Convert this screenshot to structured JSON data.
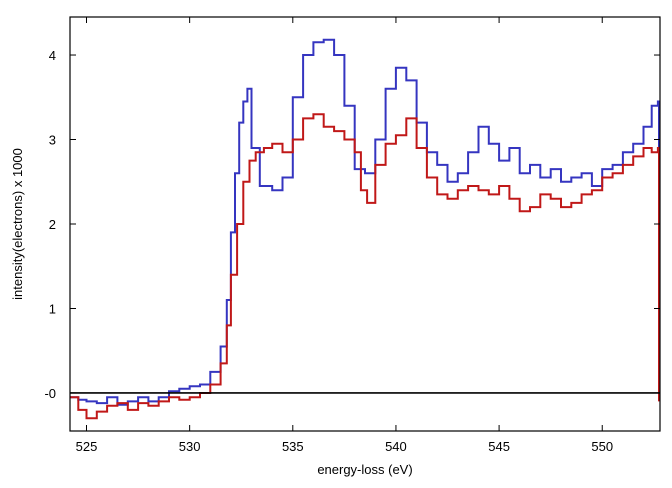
{
  "chart_data": {
    "type": "line",
    "title": "",
    "xlabel": "energy-loss (eV)",
    "ylabel": "intensity(electrons) x 1000",
    "xlim": [
      524.2,
      552.8
    ],
    "ylim": [
      -0.45,
      4.45
    ],
    "x_ticks": [
      525,
      530,
      535,
      540,
      545,
      550
    ],
    "x_tick_labels": [
      "525",
      "530",
      "535",
      "540",
      "545",
      "550"
    ],
    "y_ticks": [
      0,
      1,
      2,
      3,
      4
    ],
    "y_tick_labels": [
      "-0",
      "1",
      "2",
      "3",
      "4"
    ],
    "grid": false,
    "legend": "none",
    "baseline": 0,
    "series": [
      {
        "color": "#3535c0",
        "style": "step",
        "points": [
          [
            524.2,
            -0.05
          ],
          [
            524.6,
            -0.08
          ],
          [
            525.0,
            -0.1
          ],
          [
            525.5,
            -0.12
          ],
          [
            526.0,
            -0.05
          ],
          [
            526.5,
            -0.14
          ],
          [
            527.0,
            -0.1
          ],
          [
            527.5,
            -0.05
          ],
          [
            528.0,
            -0.1
          ],
          [
            528.5,
            -0.05
          ],
          [
            529.0,
            0.02
          ],
          [
            529.5,
            0.05
          ],
          [
            530.0,
            0.08
          ],
          [
            530.5,
            0.1
          ],
          [
            531.0,
            0.25
          ],
          [
            531.5,
            0.55
          ],
          [
            531.8,
            1.1
          ],
          [
            532.0,
            1.9
          ],
          [
            532.2,
            2.6
          ],
          [
            532.4,
            3.2
          ],
          [
            532.6,
            3.45
          ],
          [
            532.8,
            3.6
          ],
          [
            533.0,
            2.9
          ],
          [
            533.4,
            2.45
          ],
          [
            534.0,
            2.4
          ],
          [
            534.5,
            2.55
          ],
          [
            535.0,
            3.5
          ],
          [
            535.5,
            4.0
          ],
          [
            536.0,
            4.15
          ],
          [
            536.5,
            4.18
          ],
          [
            537.0,
            4.0
          ],
          [
            537.5,
            3.4
          ],
          [
            538.0,
            2.65
          ],
          [
            538.5,
            2.6
          ],
          [
            539.0,
            3.0
          ],
          [
            539.5,
            3.6
          ],
          [
            540.0,
            3.85
          ],
          [
            540.5,
            3.7
          ],
          [
            541.0,
            3.2
          ],
          [
            541.5,
            2.85
          ],
          [
            542.0,
            2.7
          ],
          [
            542.5,
            2.5
          ],
          [
            543.0,
            2.6
          ],
          [
            543.5,
            2.85
          ],
          [
            544.0,
            3.15
          ],
          [
            544.5,
            2.95
          ],
          [
            545.0,
            2.75
          ],
          [
            545.5,
            2.9
          ],
          [
            546.0,
            2.6
          ],
          [
            546.5,
            2.7
          ],
          [
            547.0,
            2.55
          ],
          [
            547.5,
            2.65
          ],
          [
            548.0,
            2.5
          ],
          [
            548.5,
            2.55
          ],
          [
            549.0,
            2.6
          ],
          [
            549.5,
            2.45
          ],
          [
            550.0,
            2.65
          ],
          [
            550.5,
            2.7
          ],
          [
            551.0,
            2.85
          ],
          [
            551.5,
            2.95
          ],
          [
            552.0,
            3.15
          ],
          [
            552.4,
            3.4
          ],
          [
            552.7,
            3.45
          ],
          [
            552.75,
            -0.05
          ]
        ]
      },
      {
        "color": "#c01818",
        "style": "step",
        "points": [
          [
            524.2,
            -0.05
          ],
          [
            524.6,
            -0.2
          ],
          [
            525.0,
            -0.3
          ],
          [
            525.5,
            -0.22
          ],
          [
            526.0,
            -0.15
          ],
          [
            526.5,
            -0.12
          ],
          [
            527.0,
            -0.2
          ],
          [
            527.5,
            -0.12
          ],
          [
            528.0,
            -0.15
          ],
          [
            528.5,
            -0.1
          ],
          [
            529.0,
            -0.05
          ],
          [
            529.5,
            -0.08
          ],
          [
            530.0,
            -0.05
          ],
          [
            530.5,
            0.0
          ],
          [
            531.0,
            0.1
          ],
          [
            531.5,
            0.35
          ],
          [
            531.8,
            0.8
          ],
          [
            532.0,
            1.4
          ],
          [
            532.3,
            2.0
          ],
          [
            532.6,
            2.5
          ],
          [
            532.9,
            2.75
          ],
          [
            533.2,
            2.85
          ],
          [
            533.6,
            2.9
          ],
          [
            534.0,
            2.95
          ],
          [
            534.5,
            2.85
          ],
          [
            535.0,
            3.0
          ],
          [
            535.5,
            3.25
          ],
          [
            536.0,
            3.3
          ],
          [
            536.5,
            3.15
          ],
          [
            537.0,
            3.1
          ],
          [
            537.5,
            3.0
          ],
          [
            538.0,
            2.85
          ],
          [
            538.3,
            2.4
          ],
          [
            538.6,
            2.25
          ],
          [
            539.0,
            2.7
          ],
          [
            539.5,
            2.95
          ],
          [
            540.0,
            3.05
          ],
          [
            540.5,
            3.25
          ],
          [
            541.0,
            2.9
          ],
          [
            541.5,
            2.55
          ],
          [
            542.0,
            2.35
          ],
          [
            542.5,
            2.3
          ],
          [
            543.0,
            2.4
          ],
          [
            543.5,
            2.45
          ],
          [
            544.0,
            2.4
          ],
          [
            544.5,
            2.35
          ],
          [
            545.0,
            2.45
          ],
          [
            545.5,
            2.3
          ],
          [
            546.0,
            2.15
          ],
          [
            546.5,
            2.2
          ],
          [
            547.0,
            2.35
          ],
          [
            547.5,
            2.3
          ],
          [
            548.0,
            2.2
          ],
          [
            548.5,
            2.25
          ],
          [
            549.0,
            2.35
          ],
          [
            549.5,
            2.4
          ],
          [
            550.0,
            2.55
          ],
          [
            550.5,
            2.6
          ],
          [
            551.0,
            2.7
          ],
          [
            551.5,
            2.8
          ],
          [
            552.0,
            2.9
          ],
          [
            552.4,
            2.85
          ],
          [
            552.7,
            2.9
          ],
          [
            552.75,
            -0.1
          ]
        ]
      }
    ]
  }
}
